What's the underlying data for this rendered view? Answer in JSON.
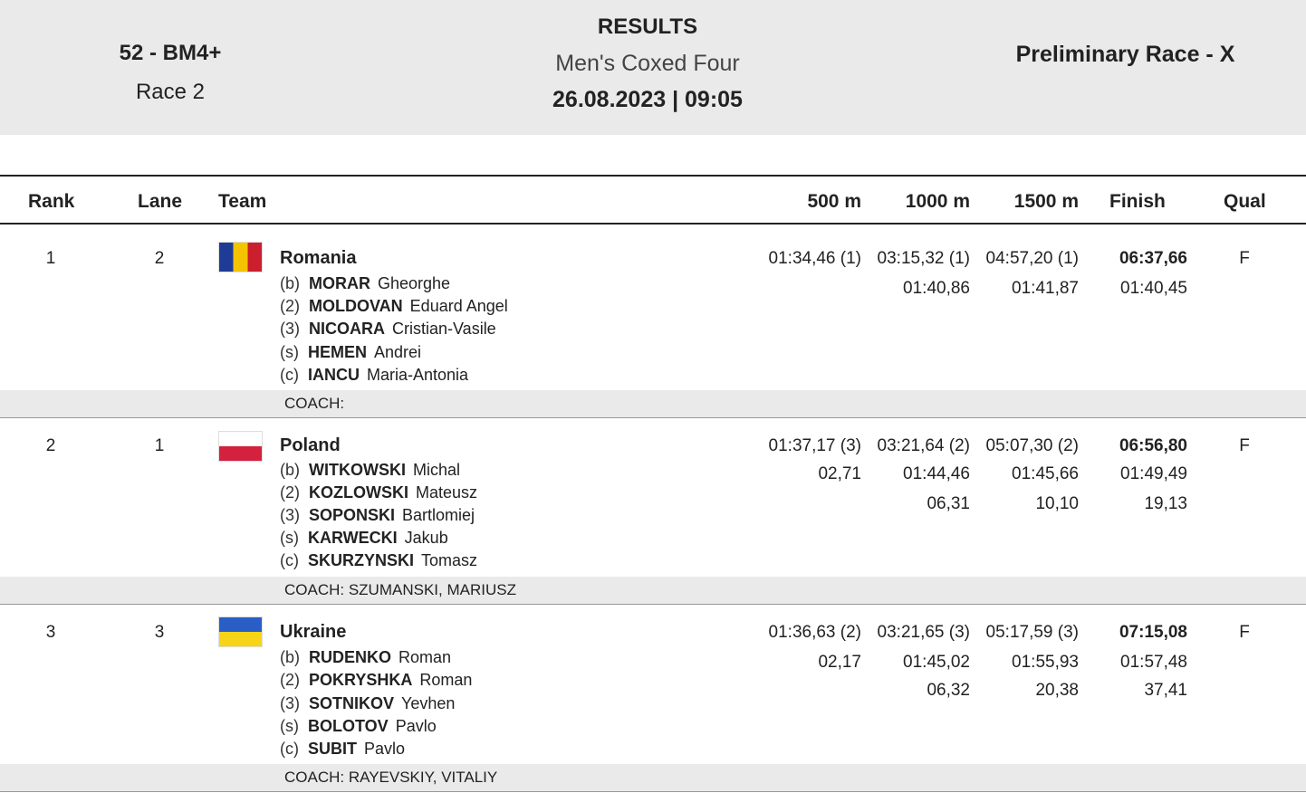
{
  "header": {
    "event": "52 - BM4+",
    "race": "Race 2",
    "title": "RESULTS",
    "subtitle": "Men's Coxed Four",
    "date": "26.08.2023 | 09:05",
    "phase": "Preliminary Race - X"
  },
  "columns": {
    "rank": "Rank",
    "lane": "Lane",
    "team": "Team",
    "m500": "500 m",
    "m1000": "1000 m",
    "m1500": "1500 m",
    "finish": "Finish",
    "qual": "Qual"
  },
  "rows": [
    {
      "rank": "1",
      "lane": "2",
      "country": "Romania",
      "flag_colors": [
        "#1e3c96",
        "#f5c400",
        "#cc1f2e"
      ],
      "flag_orientation": "vertical",
      "crew": [
        {
          "pos": "(b)",
          "last": "MORAR",
          "first": "Gheorghe"
        },
        {
          "pos": "(2)",
          "last": "MOLDOVAN",
          "first": "Eduard Angel"
        },
        {
          "pos": "(3)",
          "last": "NICOARA",
          "first": "Cristian-Vasile"
        },
        {
          "pos": "(s)",
          "last": "HEMEN",
          "first": "Andrei"
        },
        {
          "pos": "(c)",
          "last": "IANCU",
          "first": "Maria-Antonia"
        }
      ],
      "t500": "01:34,46 (1)",
      "t1000": "03:15,32 (1)",
      "t1500": "04:57,20 (1)",
      "finish": "06:37,66",
      "split1000": "01:40,86",
      "split1500": "01:41,87",
      "splitFinish": "01:40,45",
      "qual": "F",
      "coach": "COACH:"
    },
    {
      "rank": "2",
      "lane": "1",
      "country": "Poland",
      "flag_colors": [
        "#ffffff",
        "#d4213d"
      ],
      "flag_orientation": "horizontal",
      "crew": [
        {
          "pos": "(b)",
          "last": "WITKOWSKI",
          "first": "Michal"
        },
        {
          "pos": "(2)",
          "last": "KOZLOWSKI",
          "first": "Mateusz"
        },
        {
          "pos": "(3)",
          "last": "SOPONSKI",
          "first": "Bartlomiej"
        },
        {
          "pos": "(s)",
          "last": "KARWECKI",
          "first": "Jakub"
        },
        {
          "pos": "(c)",
          "last": "SKURZYNSKI",
          "first": "Tomasz"
        }
      ],
      "t500": "01:37,17 (3)",
      "t1000": "03:21,64 (2)",
      "t1500": "05:07,30 (2)",
      "finish": "06:56,80",
      "behind500": "02,71",
      "split1000": "01:44,46",
      "split1500": "01:45,66",
      "splitFinish": "01:49,49",
      "behind1000": "06,31",
      "behind1500": "10,10",
      "behindFinish": "19,13",
      "qual": "F",
      "coach": "COACH: SZUMANSKI, MARIUSZ"
    },
    {
      "rank": "3",
      "lane": "3",
      "country": "Ukraine",
      "flag_colors": [
        "#2a5ec7",
        "#f7d418"
      ],
      "flag_orientation": "horizontal",
      "crew": [
        {
          "pos": "(b)",
          "last": "RUDENKO",
          "first": "Roman"
        },
        {
          "pos": "(2)",
          "last": "POKRYSHKA",
          "first": "Roman"
        },
        {
          "pos": "(3)",
          "last": "SOTNIKOV",
          "first": "Yevhen"
        },
        {
          "pos": "(s)",
          "last": "BOLOTOV",
          "first": "Pavlo"
        },
        {
          "pos": "(c)",
          "last": "SUBIT",
          "first": "Pavlo"
        }
      ],
      "t500": "01:36,63 (2)",
      "t1000": "03:21,65 (3)",
      "t1500": "05:17,59 (3)",
      "finish": "07:15,08",
      "behind500": "02,17",
      "split1000": "01:45,02",
      "split1500": "01:55,93",
      "splitFinish": "01:57,48",
      "behind1000": "06,32",
      "behind1500": "20,38",
      "behindFinish": "37,41",
      "qual": "F",
      "coach": "COACH: RAYEVSKIY, VITALIY"
    }
  ]
}
